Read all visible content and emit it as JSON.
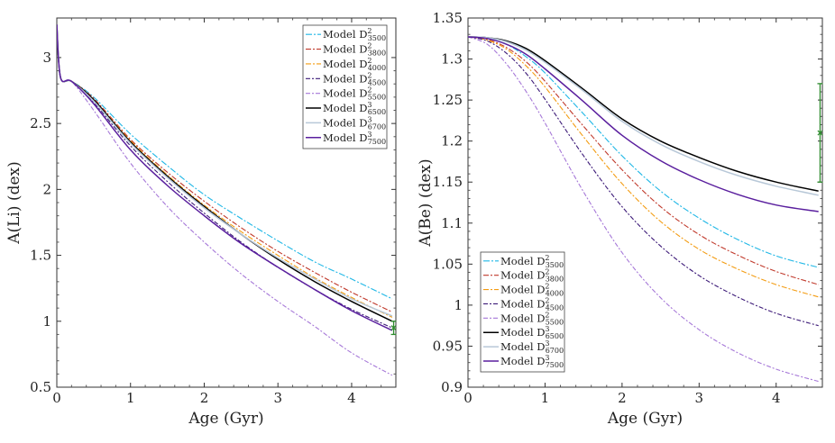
{
  "chart_data": [
    {
      "type": "line",
      "xlabel": "Age (Gyr)",
      "ylabel": "A(Li) (dex)",
      "xlim": [
        0,
        4.6
      ],
      "ylim": [
        0.5,
        3.3
      ],
      "xticks": [
        "0",
        "1",
        "2",
        "3",
        "4"
      ],
      "yticks": [
        "0.5",
        "1",
        "1.5",
        "2",
        "2.5",
        "3"
      ],
      "legend_position": "top-right",
      "grid": false,
      "observation": {
        "x": 4.57,
        "y": 0.95,
        "err": 0.05,
        "color": "#2e8b2e"
      },
      "series": [
        {
          "prefix": "Model D",
          "sup": "2",
          "sub": "3500",
          "color": "#1fb7e6",
          "dash": "7,2,2,2",
          "x": [
            0,
            0.05,
            0.2,
            0.5,
            1,
            1.5,
            2,
            2.5,
            3,
            3.5,
            4,
            4.55
          ],
          "y": [
            3.25,
            2.85,
            2.82,
            2.7,
            2.42,
            2.18,
            1.96,
            1.78,
            1.61,
            1.45,
            1.32,
            1.17
          ]
        },
        {
          "prefix": "Model D",
          "sup": "2",
          "sub": "3800",
          "color": "#c0392b",
          "dash": "6,2,2,2",
          "x": [
            0,
            0.05,
            0.2,
            0.5,
            1,
            1.5,
            2,
            2.5,
            3,
            3.5,
            4,
            4.55
          ],
          "y": [
            3.25,
            2.85,
            2.82,
            2.69,
            2.38,
            2.13,
            1.91,
            1.71,
            1.53,
            1.37,
            1.22,
            1.07
          ]
        },
        {
          "prefix": "Model D",
          "sup": "2",
          "sub": "4000",
          "color": "#f39c12",
          "dash": "6,2,2,2",
          "x": [
            0,
            0.05,
            0.2,
            0.5,
            1,
            1.5,
            2,
            2.5,
            3,
            3.5,
            4,
            4.55
          ],
          "y": [
            3.25,
            2.85,
            2.82,
            2.68,
            2.37,
            2.11,
            1.88,
            1.68,
            1.5,
            1.33,
            1.18,
            1.03
          ]
        },
        {
          "prefix": "Model D",
          "sup": "2",
          "sub": "4500",
          "color": "#3c1a78",
          "dash": "5,2,2,2",
          "x": [
            0,
            0.05,
            0.2,
            0.5,
            1,
            1.5,
            2,
            2.5,
            3,
            3.5,
            4,
            4.55
          ],
          "y": [
            3.25,
            2.85,
            2.82,
            2.66,
            2.33,
            2.06,
            1.82,
            1.6,
            1.41,
            1.24,
            1.09,
            0.95
          ]
        },
        {
          "prefix": "Model D",
          "sup": "2",
          "sub": "5500",
          "color": "#a678d8",
          "dash": "5,2,2,2",
          "x": [
            0,
            0.05,
            0.2,
            0.5,
            1,
            1.5,
            2,
            2.5,
            3,
            3.5,
            4,
            4.55
          ],
          "y": [
            3.25,
            2.85,
            2.82,
            2.6,
            2.2,
            1.87,
            1.6,
            1.36,
            1.15,
            0.96,
            0.76,
            0.59
          ]
        },
        {
          "prefix": "Model D",
          "sup": "3",
          "sub": "6500",
          "color": "#000000",
          "dash": "",
          "x": [
            0,
            0.05,
            0.2,
            0.5,
            1,
            1.5,
            2,
            2.5,
            3,
            3.5,
            4,
            4.55
          ],
          "y": [
            3.25,
            2.85,
            2.82,
            2.68,
            2.36,
            2.1,
            1.87,
            1.66,
            1.47,
            1.3,
            1.15,
            1.0
          ]
        },
        {
          "prefix": "Model D",
          "sup": "3",
          "sub": "6700",
          "color": "#b8c8d8",
          "dash": "",
          "x": [
            0,
            0.05,
            0.2,
            0.5,
            1,
            1.5,
            2,
            2.5,
            3,
            3.5,
            4,
            4.55
          ],
          "y": [
            3.25,
            2.85,
            2.82,
            2.67,
            2.35,
            2.09,
            1.86,
            1.66,
            1.48,
            1.32,
            1.17,
            1.04
          ]
        },
        {
          "prefix": "Model D",
          "sup": "3",
          "sub": "7500",
          "color": "#5a1f9e",
          "dash": "",
          "x": [
            0,
            0.05,
            0.2,
            0.5,
            1,
            1.5,
            2,
            2.5,
            3,
            3.5,
            4,
            4.55
          ],
          "y": [
            3.25,
            2.85,
            2.82,
            2.65,
            2.3,
            2.03,
            1.8,
            1.59,
            1.41,
            1.24,
            1.08,
            0.93
          ]
        }
      ]
    },
    {
      "type": "line",
      "xlabel": "Age (Gyr)",
      "ylabel": "A(Be) (dex)",
      "xlim": [
        0,
        4.6
      ],
      "ylim": [
        0.9,
        1.35
      ],
      "xticks": [
        "0",
        "1",
        "2",
        "3",
        "4"
      ],
      "yticks": [
        "0.9",
        "0.95",
        "1",
        "1.05",
        "1.1",
        "1.15",
        "1.2",
        "1.25",
        "1.3",
        "1.35"
      ],
      "legend_position": "bottom-left",
      "grid": false,
      "observation": {
        "x": 4.57,
        "y": 1.21,
        "err": 0.06,
        "color": "#2e8b2e"
      },
      "series": [
        {
          "prefix": "Model D",
          "sup": "2",
          "sub": "3500",
          "color": "#1fb7e6",
          "dash": "7,2,2,2",
          "x": [
            0,
            0.25,
            0.5,
            0.75,
            1,
            1.5,
            2,
            2.5,
            3,
            3.5,
            4,
            4.55
          ],
          "y": [
            1.327,
            1.325,
            1.318,
            1.303,
            1.283,
            1.233,
            1.182,
            1.139,
            1.106,
            1.08,
            1.06,
            1.046
          ]
        },
        {
          "prefix": "Model D",
          "sup": "2",
          "sub": "3800",
          "color": "#c0392b",
          "dash": "6,2,2,2",
          "x": [
            0,
            0.25,
            0.5,
            0.75,
            1,
            1.5,
            2,
            2.5,
            3,
            3.5,
            4,
            4.55
          ],
          "y": [
            1.327,
            1.324,
            1.314,
            1.297,
            1.273,
            1.218,
            1.165,
            1.12,
            1.086,
            1.061,
            1.041,
            1.025
          ]
        },
        {
          "prefix": "Model D",
          "sup": "2",
          "sub": "4000",
          "color": "#f39c12",
          "dash": "6,2,2,2",
          "x": [
            0,
            0.25,
            0.5,
            0.75,
            1,
            1.5,
            2,
            2.5,
            3,
            3.5,
            4,
            4.55
          ],
          "y": [
            1.327,
            1.323,
            1.312,
            1.292,
            1.266,
            1.205,
            1.148,
            1.102,
            1.068,
            1.044,
            1.025,
            1.01
          ]
        },
        {
          "prefix": "Model D",
          "sup": "2",
          "sub": "4500",
          "color": "#3c1a78",
          "dash": "5,2,2,2",
          "x": [
            0,
            0.25,
            0.5,
            0.75,
            1,
            1.5,
            2,
            2.5,
            3,
            3.5,
            4,
            4.55
          ],
          "y": [
            1.327,
            1.322,
            1.307,
            1.283,
            1.251,
            1.182,
            1.12,
            1.072,
            1.036,
            1.01,
            0.99,
            0.975
          ]
        },
        {
          "prefix": "Model D",
          "sup": "2",
          "sub": "5500",
          "color": "#a678d8",
          "dash": "5,2,2,2",
          "x": [
            0,
            0.25,
            0.5,
            0.75,
            1,
            1.5,
            2,
            2.5,
            3,
            3.5,
            4,
            4.55
          ],
          "y": [
            1.327,
            1.318,
            1.294,
            1.261,
            1.222,
            1.138,
            1.064,
            1.009,
            0.97,
            0.942,
            0.922,
            0.907
          ]
        },
        {
          "prefix": "Model D",
          "sup": "3",
          "sub": "6500",
          "color": "#000000",
          "dash": "",
          "x": [
            0,
            0.25,
            0.5,
            0.75,
            1,
            1.5,
            2,
            2.5,
            3,
            3.5,
            4,
            4.55
          ],
          "y": [
            1.327,
            1.326,
            1.322,
            1.313,
            1.298,
            1.263,
            1.227,
            1.2,
            1.18,
            1.163,
            1.15,
            1.139
          ]
        },
        {
          "prefix": "Model D",
          "sup": "3",
          "sub": "6700",
          "color": "#b8c8d8",
          "dash": "",
          "x": [
            0,
            0.25,
            0.5,
            0.75,
            1,
            1.5,
            2,
            2.5,
            3,
            3.5,
            4,
            4.55
          ],
          "y": [
            1.327,
            1.326,
            1.321,
            1.311,
            1.296,
            1.261,
            1.224,
            1.196,
            1.175,
            1.158,
            1.145,
            1.134
          ]
        },
        {
          "prefix": "Model D",
          "sup": "3",
          "sub": "7500",
          "color": "#5a1f9e",
          "dash": "",
          "x": [
            0,
            0.25,
            0.5,
            0.75,
            1,
            1.5,
            2,
            2.5,
            3,
            3.5,
            4,
            4.55
          ],
          "y": [
            1.327,
            1.325,
            1.318,
            1.306,
            1.288,
            1.248,
            1.207,
            1.176,
            1.153,
            1.135,
            1.122,
            1.114
          ]
        }
      ]
    }
  ]
}
